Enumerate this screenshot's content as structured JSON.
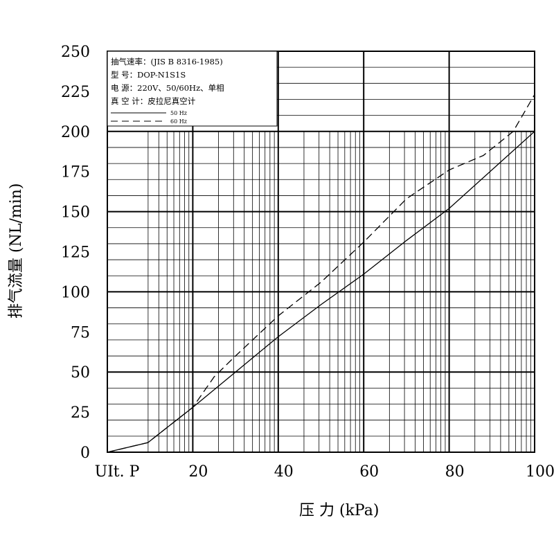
{
  "chart_data": {
    "type": "line",
    "xlabel": "压 力 (kPa)",
    "ylabel": "排气流量 (NL/min)",
    "xlim": [
      0,
      100
    ],
    "ylim": [
      0,
      250
    ],
    "x_tick_labels": [
      "UIt. P",
      "20",
      "40",
      "60",
      "80",
      "100"
    ],
    "x_ticks": [
      0,
      20,
      40,
      60,
      80,
      100
    ],
    "y_ticks": [
      0,
      25,
      50,
      75,
      100,
      125,
      150,
      175,
      200,
      225,
      250
    ],
    "y_tick_labels": [
      "0",
      "25",
      "50",
      "75",
      "100",
      "125",
      "150",
      "175",
      "200",
      "225",
      "250"
    ],
    "grid": true,
    "legend_position": "top-left",
    "info": [
      "抽气速率：(JIS B 8316-1985)",
      "型    号：DOP-N1S1S",
      "电    源：220V、50/60Hz、单相",
      "真 空 计：皮拉尼真空计"
    ],
    "series": [
      {
        "name": "50 Hz",
        "style": "solid",
        "color": "#000000",
        "x": [
          0,
          9.5,
          20,
          30,
          40,
          50,
          60,
          70,
          80,
          90,
          100
        ],
        "y": [
          0,
          6,
          28,
          50,
          72,
          92,
          111,
          132,
          152,
          176,
          200
        ]
      },
      {
        "name": "60 Hz",
        "style": "dashed",
        "color": "#000000",
        "x": [
          0,
          9.5,
          20,
          25,
          30,
          40,
          50,
          60,
          70,
          80,
          88,
          95,
          100
        ],
        "y": [
          0,
          6,
          28,
          47,
          60,
          85,
          106,
          131,
          158,
          176,
          185,
          200,
          223
        ]
      }
    ]
  }
}
